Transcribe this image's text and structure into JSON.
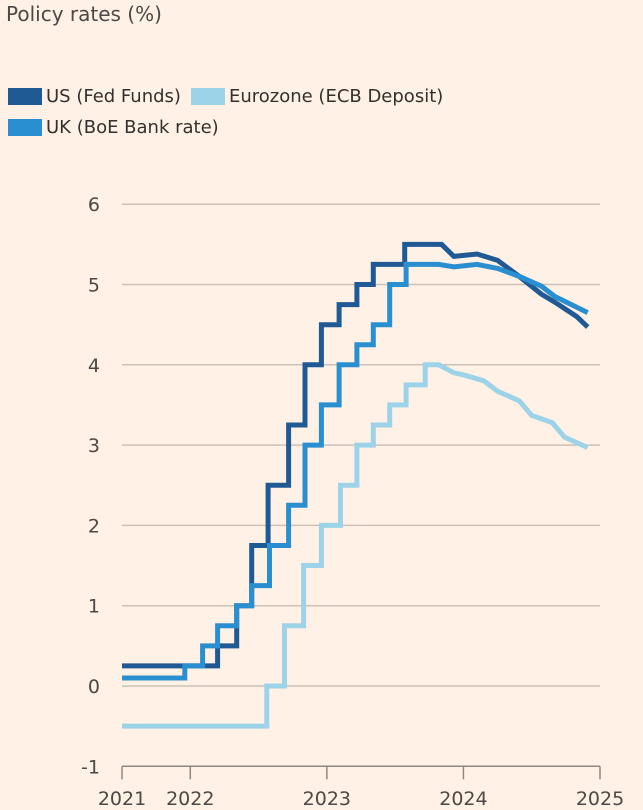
{
  "chart_data": {
    "type": "line",
    "title": "Policy rates (%)",
    "xlabel": "",
    "ylabel": "",
    "xlim": [
      2021.5,
      2025.0
    ],
    "ylim": [
      -1,
      6
    ],
    "yticks": [
      -1,
      0,
      1,
      2,
      3,
      4,
      5,
      6
    ],
    "xticks": [
      {
        "value": 2021.5,
        "label": "2021"
      },
      {
        "value": 2022,
        "label": "2022"
      },
      {
        "value": 2023,
        "label": "2023"
      },
      {
        "value": 2024,
        "label": "2024"
      },
      {
        "value": 2025,
        "label": "2025"
      }
    ],
    "grid": "horizontal",
    "legend_placement": "top-left",
    "series": [
      {
        "name": "US (Fed Funds)",
        "color": "#1f5a94",
        "steps": [
          [
            2021.5,
            0.25
          ],
          [
            2022.2,
            0.5
          ],
          [
            2022.34,
            1.0
          ],
          [
            2022.45,
            1.75
          ],
          [
            2022.57,
            2.5
          ],
          [
            2022.72,
            3.25
          ],
          [
            2022.84,
            4.0
          ],
          [
            2022.96,
            4.5
          ],
          [
            2023.09,
            4.75
          ],
          [
            2023.22,
            5.0
          ],
          [
            2023.34,
            5.25
          ],
          [
            2023.57,
            5.5
          ],
          [
            2023.84,
            5.5
          ]
        ],
        "forecast": [
          [
            2023.84,
            5.5
          ],
          [
            2023.93,
            5.35
          ],
          [
            2024.1,
            5.38
          ],
          [
            2024.25,
            5.3
          ],
          [
            2024.41,
            5.1
          ],
          [
            2024.57,
            4.88
          ],
          [
            2024.67,
            4.78
          ],
          [
            2024.83,
            4.6
          ],
          [
            2024.91,
            4.47
          ]
        ]
      },
      {
        "name": "Eurozone (ECB Deposit)",
        "color": "#9dd3e8",
        "steps": [
          [
            2021.5,
            -0.5
          ],
          [
            2022.56,
            0.0
          ],
          [
            2022.69,
            0.75
          ],
          [
            2022.83,
            1.5
          ],
          [
            2022.96,
            2.0
          ],
          [
            2023.1,
            2.5
          ],
          [
            2023.22,
            3.0
          ],
          [
            2023.34,
            3.25
          ],
          [
            2023.46,
            3.5
          ],
          [
            2023.58,
            3.75
          ],
          [
            2023.72,
            4.0
          ],
          [
            2023.82,
            4.0
          ]
        ],
        "forecast": [
          [
            2023.82,
            4.0
          ],
          [
            2023.93,
            3.9
          ],
          [
            2024.01,
            3.87
          ],
          [
            2024.15,
            3.8
          ],
          [
            2024.25,
            3.67
          ],
          [
            2024.41,
            3.55
          ],
          [
            2024.5,
            3.37
          ],
          [
            2024.65,
            3.28
          ],
          [
            2024.74,
            3.1
          ],
          [
            2024.91,
            2.97
          ]
        ]
      },
      {
        "name": "UK (BoE Bank rate)",
        "color": "#2a8fd0",
        "steps": [
          [
            2021.5,
            0.1
          ],
          [
            2021.96,
            0.25
          ],
          [
            2022.09,
            0.5
          ],
          [
            2022.2,
            0.75
          ],
          [
            2022.34,
            1.0
          ],
          [
            2022.45,
            1.25
          ],
          [
            2022.58,
            1.75
          ],
          [
            2022.72,
            2.25
          ],
          [
            2022.84,
            3.0
          ],
          [
            2022.96,
            3.5
          ],
          [
            2023.09,
            4.0
          ],
          [
            2023.22,
            4.25
          ],
          [
            2023.34,
            4.5
          ],
          [
            2023.46,
            5.0
          ],
          [
            2023.58,
            5.25
          ],
          [
            2023.82,
            5.25
          ]
        ],
        "forecast": [
          [
            2023.82,
            5.25
          ],
          [
            2023.93,
            5.22
          ],
          [
            2024.1,
            5.25
          ],
          [
            2024.25,
            5.2
          ],
          [
            2024.41,
            5.1
          ],
          [
            2024.57,
            4.98
          ],
          [
            2024.67,
            4.85
          ],
          [
            2024.91,
            4.65
          ]
        ]
      }
    ]
  }
}
